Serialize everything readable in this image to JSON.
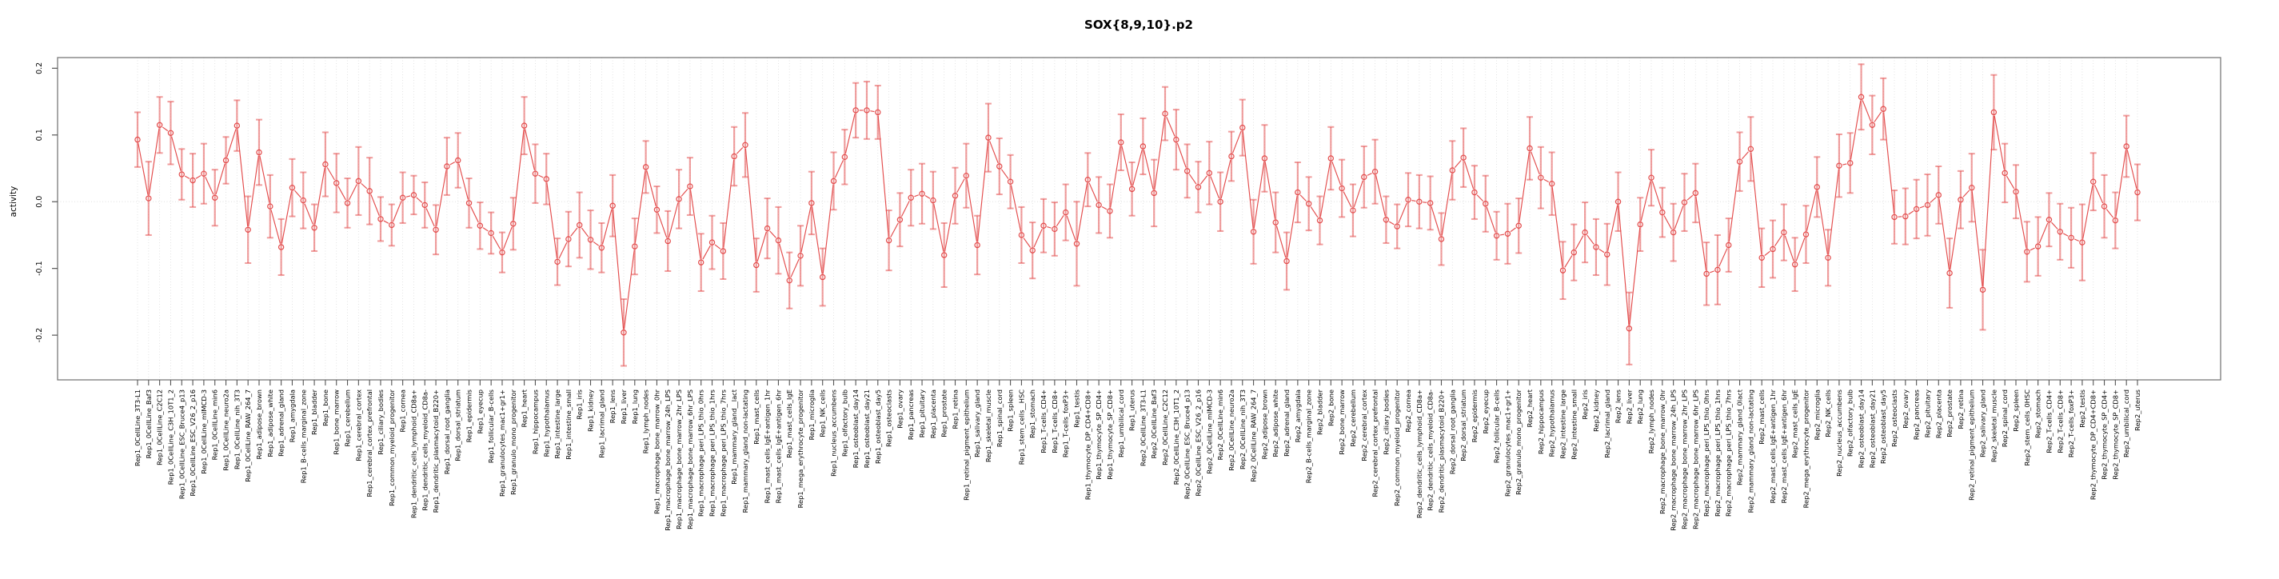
{
  "chart_data": {
    "type": "scatter",
    "title": "SOX{8,9,10}.p2",
    "ylabel": "activity",
    "xlabel": "",
    "ylim": [
      -0.267,
      0.216
    ],
    "yticks": [
      0.2,
      0.1,
      0.0,
      -0.1,
      -0.2
    ],
    "grid": "vertical-dotted-per-category",
    "zero_line": "dotted",
    "legend": "none",
    "point_style": "open-circle-with-error-bars",
    "colors": {
      "series": "#e34b4b",
      "error_bar": "rgba(228,78,78,0.55)",
      "gridline": "#dcdcdc",
      "frame": "#7a7a7a",
      "tick": "#555555",
      "text": "#000000"
    },
    "categories": [
      "Rep1_0CellLine_3T3-L1",
      "Rep1_0CellLine_Baf3",
      "Rep1_0CellLine_C2C12",
      "Rep1_0CellLine_C3H_10T1_2",
      "Rep1_0CellLine_ESC_Bruce4_p13",
      "Rep1_0CellLine_ESC_V26_2_p16",
      "Rep1_0CellLine_mIMCD-3",
      "Rep1_0CellLine_min6",
      "Rep1_0CellLine_neuro2a",
      "Rep1_0CellLine_nih_3T3",
      "Rep1_0CellLine_RAW_264_7",
      "Rep1_adipose_brown",
      "Rep1_adipose_white",
      "Rep1_adrenal_gland",
      "Rep1_amygdala",
      "Rep1_B-cells_marginal_zone",
      "Rep1_bladder",
      "Rep1_bone",
      "Rep1_bone_marrow",
      "Rep1_cerebellum",
      "Rep1_cerebral_cortex",
      "Rep1_cerebral_cortex_prefrontal",
      "Rep1_ciliary_bodies",
      "Rep1_common_myeloid_progenitor",
      "Rep1_cornea",
      "Rep1_dendritic_cells_lymphoid_CD8a+",
      "Rep1_dendritic_cells_myeloid_CD8a-",
      "Rep1_dendritic_plasmacytoid_B220+",
      "Rep1_dorsal_root_ganglia",
      "Rep1_dorsal_striatum",
      "Rep1_epidermis",
      "Rep1_eyecup",
      "Rep1_follicular_B-cells",
      "Rep1_granulocytes_mac1+gr1+",
      "Rep1_granulo_mono_progenitor",
      "Rep1_heart",
      "Rep1_hippocampus",
      "Rep1_hypothalamus",
      "Rep1_intestine_large",
      "Rep1_intestine_small",
      "Rep1_iris",
      "Rep1_kidney",
      "Rep1_lacrimal_gland",
      "Rep1_lens",
      "Rep1_liver",
      "Rep1_lung",
      "Rep1_lymph_nodes",
      "Rep1_macrophage_bone_marrow_0hr",
      "Rep1_macrophage_bone_marrow_24h_LPS",
      "Rep1_macrophage_bone_marrow_2hr_LPS",
      "Rep1_macrophage_bone_marrow_6hr_LPS",
      "Rep1_macrophage_peri_LPS_thio_0hrs",
      "Rep1_macrophage_peri_LPS_thio_1hrs",
      "Rep1_macrophage_peri_LPS_thio_7hrs",
      "Rep1_mammary_gland__lact",
      "Rep1_mammary_gland_non-lactating",
      "Rep1_mast_cells",
      "Rep1_mast_cells_IgE+antigen_1hr",
      "Rep1_mast_cells_IgE+antigen_6hr",
      "Rep1_mast_cells_IgE",
      "Rep1_mega_erythrocyte_progenitor",
      "Rep1_microglia",
      "Rep1_NK_cells",
      "Rep1_nucleus_accumbens",
      "Rep1_olfactory_bulb",
      "Rep1_osteoblast_day14",
      "Rep1_osteoblast_day21",
      "Rep1_osteoblast_day5",
      "Rep1_osteoclasts",
      "Rep1_ovary",
      "Rep1_pancreas",
      "Rep1_pituitary",
      "Rep1_placenta",
      "Rep1_prostate",
      "Rep1_retina",
      "Rep1_retinal_pigment_epithelium",
      "Rep1_salivary_gland",
      "Rep1_skeletal_muscle",
      "Rep1_spinal_cord",
      "Rep1_spleen",
      "Rep1_stem_cells__HSC",
      "Rep1_stomach",
      "Rep1_T-cells_CD4+",
      "Rep1_T-cells_CD8+",
      "Rep1_T-cells_foxP3+",
      "Rep1_testis",
      "Rep1_thymocyte_DP_CD4+CD8+",
      "Rep1_thymocyte_SP_CD4+",
      "Rep1_thymocyte_SP_CD8+",
      "Rep1_umbilical_cord",
      "Rep1_uterus",
      "Rep2_0CellLine_3T3-L1",
      "Rep2_0CellLine_Baf3",
      "Rep2_0CellLine_C2C12",
      "Rep2_0CellLine_C3H_10T1_2",
      "Rep2_0CellLine_ESC_Bruce4_p13",
      "Rep2_0CellLine_ESC_V26_2_p16",
      "Rep2_0CellLine_mIMCD-3",
      "Rep2_0CellLine_min6",
      "Rep2_0CellLine_neuro2a",
      "Rep2_0CellLine_nih_3T3",
      "Rep2_0CellLine_RAW_264_7",
      "Rep2_adipose_brown",
      "Rep2_adipose_white",
      "Rep2_adrenal_gland",
      "Rep2_amygdala",
      "Rep2_B-cells_marginal_zone",
      "Rep2_bladder",
      "Rep2_bone",
      "Rep2_bone_marrow",
      "Rep2_cerebellum",
      "Rep2_cerebral_cortex",
      "Rep2_cerebral_cortex_prefrontal",
      "Rep2_ciliary_bodies",
      "Rep2_common_myeloid_progenitor",
      "Rep2_cornea",
      "Rep2_dendritic_cells_lymphoid_CD8a+",
      "Rep2_dendritic_cells_myeloid_CD8a-",
      "Rep2_dendritic_plasmacytoid_B220+",
      "Rep2_dorsal_root_ganglia",
      "Rep2_dorsal_striatum",
      "Rep2_epidermis",
      "Rep2_eyecup",
      "Rep2_follicular_B-cells",
      "Rep2_granulocytes_mac1+gr1+",
      "Rep2_granulo_mono_progenitor",
      "Rep2_heart",
      "Rep2_hippocampus",
      "Rep2_hypothalamus",
      "Rep2_intestine_large",
      "Rep2_intestine_small",
      "Rep2_iris",
      "Rep2_kidney",
      "Rep2_lacrimal_gland",
      "Rep2_lens",
      "Rep2_liver",
      "Rep2_lung",
      "Rep2_lymph_nodes",
      "Rep2_macrophage_bone_marrow_0hr",
      "Rep2_macrophage_bone_marrow_24h_LPS",
      "Rep2_macrophage_bone_marrow_2hr_LPS",
      "Rep2_macrophage_bone_marrow_6hr_LPS",
      "Rep2_macrophage_peri_LPS_thio_0hrs",
      "Rep2_macrophage_peri_LPS_thio_1hrs",
      "Rep2_macrophage_peri_LPS_thio_7hrs",
      "Rep2_mammary_gland_0lact",
      "Rep2_mammary_gland_non-lactating",
      "Rep2_mast_cells",
      "Rep2_mast_cells_IgE+antigen_1hr",
      "Rep2_mast_cells_IgE+antigen_6hr",
      "Rep2_mast_cells_IgE",
      "Rep2_mega_erythrocyte_progenitor",
      "Rep2_microglia",
      "Rep2_NK_cells",
      "Rep2_nucleus_accumbens",
      "Rep2_olfactory_bulb",
      "Rep2_osteoblast_day14",
      "Rep2_osteoblast_day21",
      "Rep2_osteoblast_day5",
      "Rep2_osteoclasts",
      "Rep2_ovary",
      "Rep2_pancreas",
      "Rep2_pituitary",
      "Rep2_placenta",
      "Rep2_prostate",
      "Rep2_retina",
      "Rep2_retinal_pigment_epithelium",
      "Rep2_salivary_gland",
      "Rep2_skeletal_muscle",
      "Rep2_spinal_cord",
      "Rep2_spleen",
      "Rep2_stem_cells_0HSC",
      "Rep2_stomach",
      "Rep2_T-cells_CD4+",
      "Rep2_T-cells_CD8+",
      "Rep2_T-cells_foxP3+",
      "Rep2_testis",
      "Rep2_thymocyte_DP_CD4+CD8+",
      "Rep2_thymocyte_SP_CD4+",
      "Rep2_thymocyte_SP_CD8+",
      "Rep2_umbilical_cord",
      "Rep2_uterus"
    ],
    "values": [
      0.093,
      0.005,
      0.115,
      0.103,
      0.041,
      0.032,
      0.042,
      0.006,
      0.062,
      0.114,
      -0.042,
      0.074,
      -0.007,
      -0.068,
      0.021,
      0.002,
      -0.039,
      0.056,
      0.028,
      -0.002,
      0.031,
      0.016,
      -0.026,
      -0.035,
      0.006,
      0.01,
      -0.005,
      -0.042,
      0.053,
      0.062,
      -0.002,
      -0.036,
      -0.047,
      -0.076,
      -0.033,
      0.114,
      0.042,
      0.034,
      -0.09,
      -0.056,
      -0.035,
      -0.057,
      -0.069,
      -0.006,
      -0.196,
      -0.067,
      0.052,
      -0.012,
      -0.059,
      0.004,
      0.023,
      -0.091,
      -0.061,
      -0.074,
      0.068,
      0.085,
      -0.095,
      -0.04,
      -0.058,
      -0.118,
      -0.081,
      -0.002,
      -0.113,
      0.031,
      0.067,
      0.137,
      0.137,
      0.134,
      -0.058,
      -0.027,
      0.006,
      0.012,
      0.002,
      -0.08,
      0.009,
      0.039,
      -0.065,
      0.096,
      0.053,
      0.03,
      -0.05,
      -0.073,
      -0.036,
      -0.041,
      -0.016,
      -0.063,
      0.033,
      -0.005,
      -0.014,
      0.089,
      0.019,
      0.083,
      0.013,
      0.132,
      0.093,
      0.046,
      0.022,
      0.043,
      0.0,
      0.068,
      0.111,
      -0.045,
      0.065,
      -0.031,
      -0.089,
      0.014,
      -0.003,
      -0.028,
      0.065,
      0.02,
      -0.013,
      0.037,
      0.045,
      -0.027,
      -0.037,
      0.003,
      0.0,
      -0.002,
      -0.056,
      0.047,
      0.066,
      0.014,
      -0.003,
      -0.051,
      -0.048,
      -0.036,
      0.08,
      0.036,
      0.027,
      -0.103,
      -0.076,
      -0.046,
      -0.068,
      -0.079,
      0.0,
      -0.19,
      -0.034,
      0.036,
      -0.016,
      -0.046,
      -0.001,
      0.013,
      -0.108,
      -0.102,
      -0.065,
      0.06,
      0.079,
      -0.084,
      -0.071,
      -0.046,
      -0.094,
      -0.049,
      0.022,
      -0.084,
      0.054,
      0.058,
      0.157,
      0.115,
      0.139,
      -0.023,
      -0.022,
      -0.011,
      -0.005,
      0.01,
      -0.107,
      0.003,
      0.021,
      -0.132,
      0.134,
      0.043,
      0.015,
      -0.075,
      -0.067,
      -0.027,
      -0.045,
      -0.054,
      -0.061,
      0.03,
      -0.007,
      -0.028,
      0.083,
      0.014
    ],
    "errors": [
      0.041,
      0.055,
      0.042,
      0.047,
      0.038,
      0.04,
      0.045,
      0.042,
      0.035,
      0.038,
      0.05,
      0.049,
      0.047,
      0.042,
      0.043,
      0.042,
      0.035,
      0.048,
      0.044,
      0.037,
      0.051,
      0.05,
      0.033,
      0.031,
      0.038,
      0.029,
      0.034,
      0.037,
      0.043,
      0.041,
      0.037,
      0.035,
      0.031,
      0.03,
      0.039,
      0.043,
      0.044,
      0.038,
      0.035,
      0.041,
      0.049,
      0.044,
      0.037,
      0.046,
      0.05,
      0.042,
      0.039,
      0.035,
      0.045,
      0.044,
      0.043,
      0.043,
      0.04,
      0.042,
      0.044,
      0.048,
      0.04,
      0.045,
      0.05,
      0.042,
      0.045,
      0.047,
      0.043,
      0.043,
      0.041,
      0.041,
      0.043,
      0.04,
      0.045,
      0.04,
      0.042,
      0.045,
      0.043,
      0.048,
      0.042,
      0.048,
      0.044,
      0.051,
      0.042,
      0.04,
      0.042,
      0.042,
      0.04,
      0.04,
      0.042,
      0.063,
      0.04,
      0.042,
      0.04,
      0.042,
      0.04,
      0.042,
      0.05,
      0.04,
      0.045,
      0.04,
      0.038,
      0.047,
      0.044,
      0.037,
      0.042,
      0.048,
      0.05,
      0.045,
      0.043,
      0.045,
      0.04,
      0.036,
      0.047,
      0.043,
      0.039,
      0.046,
      0.048,
      0.035,
      0.033,
      0.04,
      0.04,
      0.04,
      0.039,
      0.044,
      0.044,
      0.04,
      0.042,
      0.036,
      0.045,
      0.041,
      0.047,
      0.046,
      0.047,
      0.043,
      0.042,
      0.045,
      0.042,
      0.046,
      0.044,
      0.054,
      0.04,
      0.042,
      0.037,
      0.043,
      0.043,
      0.044,
      0.047,
      0.052,
      0.04,
      0.044,
      0.048,
      0.044,
      0.043,
      0.042,
      0.04,
      0.043,
      0.045,
      0.042,
      0.047,
      0.045,
      0.049,
      0.044,
      0.046,
      0.04,
      0.042,
      0.044,
      0.046,
      0.043,
      0.052,
      0.043,
      0.051,
      0.06,
      0.056,
      0.044,
      0.04,
      0.045,
      0.044,
      0.04,
      0.042,
      0.045,
      0.057,
      0.043,
      0.047,
      0.042,
      0.046,
      0.042
    ]
  }
}
